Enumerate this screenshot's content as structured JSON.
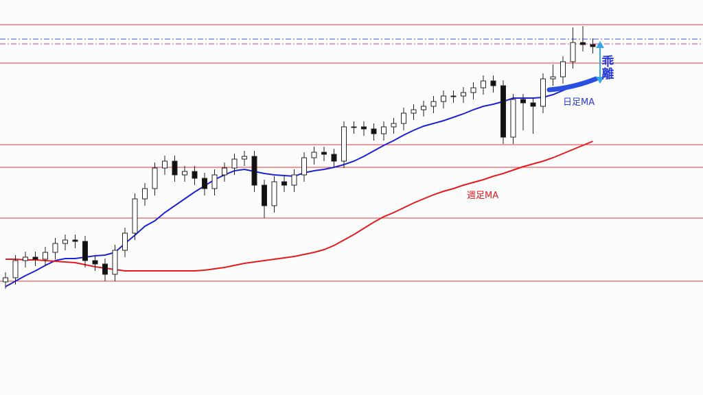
{
  "chart_data": {
    "type": "candlestick",
    "ylim": [
      0,
      576
    ],
    "hlines": [
      {
        "value": 540,
        "color": "#e8343a"
      },
      {
        "value": 484,
        "color": "#e8343a"
      },
      {
        "value": 365,
        "color": "#e8343a"
      },
      {
        "value": 332,
        "color": "#e8343a"
      },
      {
        "value": 258,
        "color": "#e8343a"
      },
      {
        "value": 166,
        "color": "#e8343a"
      }
    ],
    "dashed_lines": [
      {
        "value": 519,
        "color": "#3a4fe0"
      },
      {
        "value": 512,
        "color": "#d040a0"
      }
    ],
    "open": [
      165,
      171,
      196,
      201,
      198,
      208,
      221,
      226,
      224,
      196,
      191,
      176,
      211,
      236,
      286,
      301,
      331,
      341,
      321,
      326,
      316,
      301,
      321,
      331,
      344,
      348,
      306,
      276,
      311,
      306,
      321,
      346,
      354,
      351,
      341,
      391,
      391,
      388,
      381,
      391,
      396,
      411,
      416,
      421,
      428,
      436,
      436,
      441,
      448,
      458,
      451,
      376,
      431,
      426,
      421,
      461,
      464,
      486,
      514,
      511
    ],
    "high": [
      179,
      204,
      209,
      209,
      216,
      229,
      234,
      234,
      232,
      204,
      199,
      219,
      244,
      294,
      309,
      339,
      349,
      349,
      334,
      334,
      324,
      329,
      339,
      352,
      356,
      356,
      314,
      319,
      319,
      329,
      354,
      362,
      362,
      359,
      399,
      399,
      399,
      396,
      399,
      404,
      419,
      424,
      429,
      436,
      444,
      444,
      449,
      456,
      466,
      466,
      459,
      439,
      439,
      434,
      469,
      482,
      494,
      536,
      538,
      520
    ],
    "low": [
      155,
      161,
      186,
      188,
      188,
      198,
      211,
      214,
      186,
      181,
      166,
      166,
      201,
      226,
      276,
      291,
      321,
      311,
      311,
      306,
      291,
      291,
      311,
      321,
      334,
      296,
      258,
      266,
      296,
      296,
      311,
      336,
      341,
      331,
      331,
      381,
      378,
      371,
      371,
      381,
      386,
      401,
      406,
      411,
      418,
      426,
      426,
      431,
      438,
      441,
      366,
      366,
      386,
      381,
      411,
      451,
      454,
      476,
      501,
      498
    ],
    "close": [
      171,
      196,
      201,
      198,
      208,
      221,
      226,
      224,
      196,
      191,
      176,
      211,
      236,
      286,
      301,
      331,
      341,
      321,
      326,
      316,
      301,
      321,
      331,
      344,
      348,
      306,
      276,
      311,
      306,
      321,
      346,
      354,
      351,
      341,
      391,
      391,
      388,
      381,
      391,
      396,
      411,
      416,
      421,
      428,
      436,
      436,
      441,
      448,
      458,
      451,
      376,
      431,
      426,
      421,
      461,
      464,
      486,
      514,
      511,
      508
    ],
    "series": [
      {
        "name": "日足MA",
        "color": "#1c22d8",
        "values": [
          158,
          166,
          174,
          181,
          189,
          196,
          199,
          199,
          201,
          203,
          204,
          208,
          221,
          233,
          246,
          254,
          266,
          276,
          286,
          296,
          305,
          314,
          321,
          327,
          329,
          326,
          323,
          321,
          320,
          319,
          324,
          327,
          329,
          332,
          336,
          341,
          348,
          356,
          364,
          371,
          379,
          386,
          392,
          396,
          400,
          405,
          410,
          416,
          421,
          424,
          428,
          433,
          433,
          433,
          434,
          438,
          444,
          450,
          454,
          459
        ]
      },
      {
        "name": "週足MA",
        "color": "#e8191e",
        "values": [
          198,
          198,
          197,
          197,
          196,
          195,
          194,
          193,
          190,
          187,
          185,
          183,
          181,
          181,
          181,
          181,
          181,
          181,
          181,
          181,
          182,
          184,
          186,
          189,
          192,
          194,
          196,
          198,
          200,
          202,
          205,
          208,
          212,
          218,
          226,
          234,
          243,
          252,
          260,
          266,
          273,
          280,
          286,
          292,
          297,
          301,
          306,
          310,
          314,
          319,
          323,
          328,
          333,
          337,
          341,
          346,
          352,
          358,
          364,
          370
        ]
      }
    ],
    "annotation": "乖離"
  }
}
